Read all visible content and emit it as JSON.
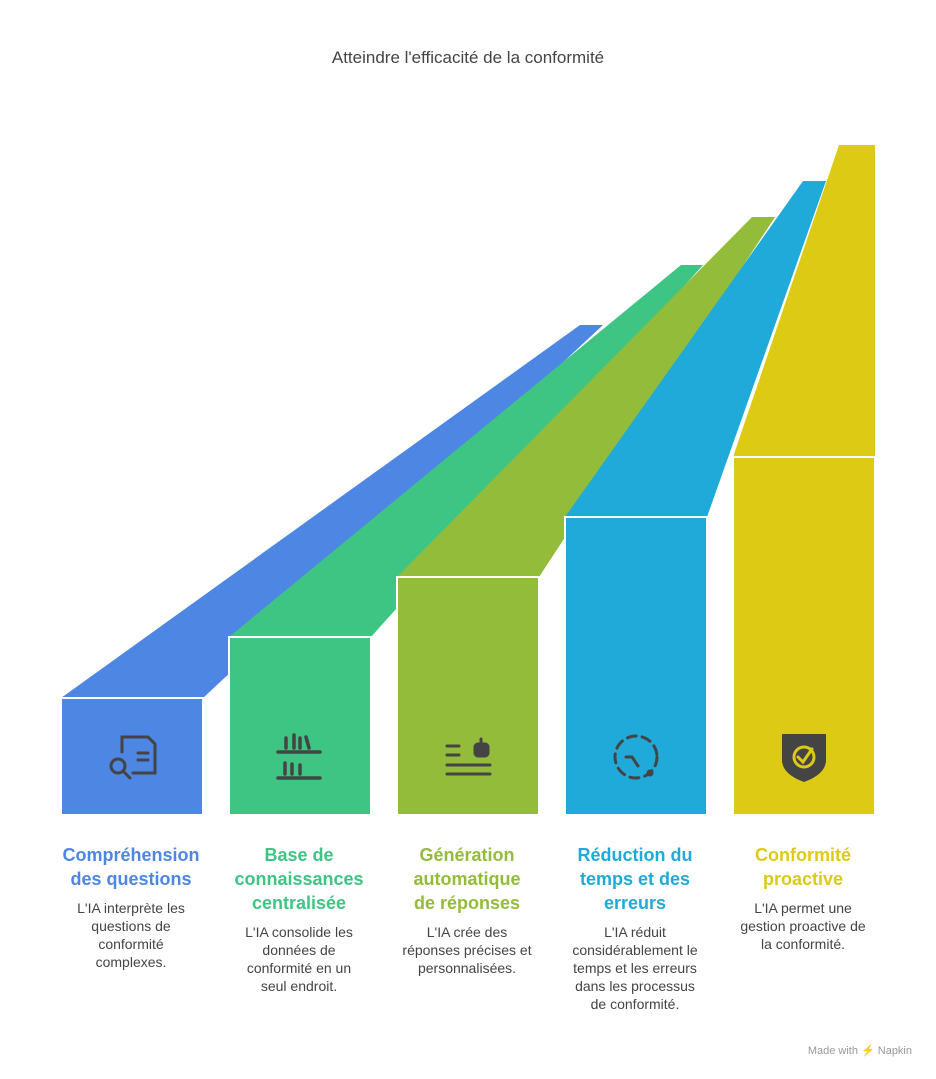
{
  "title": "Atteindre l'efficacité de la conformité",
  "steps": [
    {
      "color": "#4E86E4",
      "icon": "document-search-icon",
      "title": [
        "Compréhension",
        "des questions"
      ],
      "desc": [
        "L'IA interprète les",
        "questions de",
        "conformité",
        "complexes."
      ]
    },
    {
      "color": "#3EC584",
      "icon": "bookshelf-icon",
      "title": [
        "Base de",
        "connaissances",
        "centralisée"
      ],
      "desc": [
        "L'IA consolide les",
        "données de",
        "conformité en un",
        "seul endroit."
      ]
    },
    {
      "color": "#93BC3A",
      "icon": "robot-text-icon",
      "title": [
        "Génération",
        "automatique",
        "de réponses"
      ],
      "desc": [
        "L'IA crée des",
        "réponses précises et",
        "personnalisées."
      ]
    },
    {
      "color": "#20AAD9",
      "icon": "dashed-clock-icon",
      "title": [
        "Réduction du",
        "temps et des",
        "erreurs"
      ],
      "desc": [
        "L'IA réduit",
        "considérablement le",
        "temps et les erreurs",
        "dans les processus",
        "de conformité."
      ]
    },
    {
      "color": "#DDCA15",
      "icon": "shield-check-icon",
      "title": [
        "Conformité",
        "proactive"
      ],
      "desc": [
        "L'IA permet une",
        "gestion proactive de",
        "la conformité."
      ]
    }
  ],
  "footer": "Made with ⚡ Napkin"
}
